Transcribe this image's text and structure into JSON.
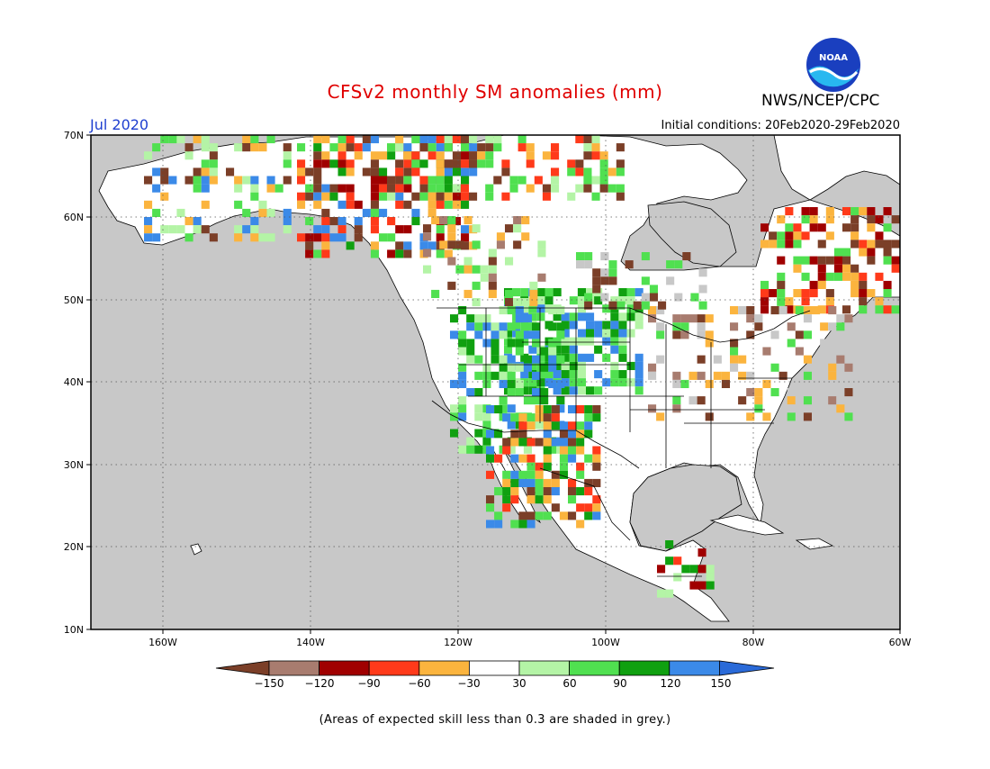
{
  "title": "CFSv2 monthly SM anomalies (mm)",
  "month": "Jul 2020",
  "agency": "NWS/NCEP/CPC",
  "logo_text": "NOAA",
  "initial_conditions": "Initial conditions: 20Feb2020-29Feb2020",
  "lat_labels": [
    "70N",
    "60N",
    "50N",
    "40N",
    "30N",
    "20N",
    "10N"
  ],
  "lon_labels": [
    "160W",
    "140W",
    "120W",
    "100W",
    "80W",
    "60W"
  ],
  "legend": {
    "labels": [
      "−150",
      "−120",
      "−90",
      "−60",
      "−30",
      "30",
      "60",
      "90",
      "120",
      "150"
    ],
    "colors": [
      "#7b3f28",
      "#a87c6f",
      "#a00000",
      "#ff3a1a",
      "#fbb43e",
      "#ffffff",
      "#b4f4a6",
      "#50e050",
      "#10a010",
      "#3b8ae8",
      "#2a6ad8"
    ]
  },
  "footnote": "(Areas of expected skill less than 0.3 are shaded in grey.)",
  "colors": {
    "title": "#e00000",
    "month": "#2040d0",
    "grey_low_skill": "#c8c8c8"
  }
}
